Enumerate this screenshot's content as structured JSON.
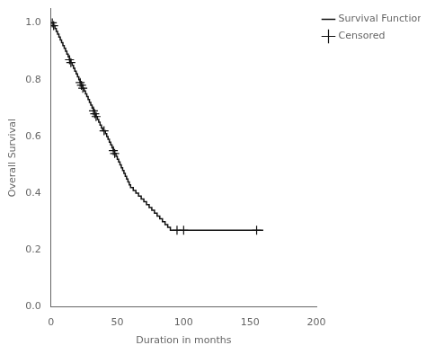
{
  "chart_data": {
    "type": "line",
    "xlabel": "Duration in months",
    "ylabel": "Overall Survival",
    "xlim": [
      0,
      200
    ],
    "ylim": [
      0.0,
      1.05
    ],
    "xticks": [
      0,
      50,
      100,
      150,
      200
    ],
    "yticks": [
      {
        "value": 0.0,
        "label": "0.0"
      },
      0.2,
      0.4,
      0.6,
      0.8,
      {
        "value": 1.0,
        "label": "1.0"
      }
    ],
    "grid": false,
    "legend": "right",
    "series": [
      {
        "name": "Survival Function",
        "type": "line",
        "line_style": "step",
        "color": "#111111",
        "x": [
          0,
          1,
          2,
          3,
          4,
          5,
          6,
          7,
          8,
          9,
          10,
          11,
          12,
          13,
          14,
          15,
          16,
          17,
          18,
          19,
          20,
          21,
          22,
          23,
          24,
          25,
          26,
          27,
          28,
          29,
          30,
          31,
          32,
          33,
          34,
          35,
          36,
          37,
          38,
          39,
          40,
          41,
          42,
          43,
          44,
          45,
          46,
          47,
          48,
          49,
          50,
          51,
          52,
          53,
          54,
          55,
          56,
          57,
          58,
          59,
          60,
          62,
          64,
          66,
          68,
          70,
          72,
          74,
          76,
          78,
          80,
          82,
          84,
          86,
          88,
          90,
          160
        ],
        "values": [
          1.0,
          1.0,
          0.99,
          0.98,
          0.97,
          0.96,
          0.95,
          0.94,
          0.93,
          0.92,
          0.91,
          0.9,
          0.89,
          0.88,
          0.87,
          0.86,
          0.85,
          0.84,
          0.83,
          0.82,
          0.81,
          0.8,
          0.79,
          0.78,
          0.77,
          0.76,
          0.75,
          0.74,
          0.73,
          0.72,
          0.71,
          0.7,
          0.69,
          0.68,
          0.67,
          0.66,
          0.65,
          0.64,
          0.63,
          0.62,
          0.62,
          0.61,
          0.6,
          0.59,
          0.58,
          0.57,
          0.56,
          0.55,
          0.54,
          0.53,
          0.52,
          0.51,
          0.5,
          0.49,
          0.48,
          0.47,
          0.46,
          0.45,
          0.44,
          0.43,
          0.42,
          0.41,
          0.4,
          0.39,
          0.38,
          0.37,
          0.36,
          0.35,
          0.34,
          0.33,
          0.32,
          0.31,
          0.3,
          0.29,
          0.28,
          0.27,
          0.27
        ]
      },
      {
        "name": "Censored",
        "type": "scatter",
        "marker": "+",
        "color": "#111111",
        "x": [
          1,
          2,
          14,
          15,
          22,
          23,
          24,
          32,
          33,
          34,
          40,
          47,
          48,
          95,
          100,
          155
        ],
        "values": [
          1.0,
          0.99,
          0.87,
          0.86,
          0.79,
          0.78,
          0.77,
          0.69,
          0.68,
          0.67,
          0.62,
          0.55,
          0.54,
          0.27,
          0.27,
          0.27
        ]
      }
    ]
  }
}
